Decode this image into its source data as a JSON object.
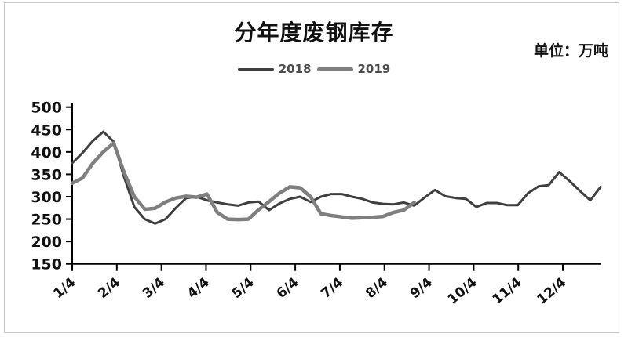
{
  "window": {
    "background": "#ffffff",
    "border_color": "#c8c8c8"
  },
  "header": {
    "title": "分年度废钢库存",
    "unit_label": "单位：万吨"
  },
  "legend": {
    "position": "top-center",
    "items": [
      {
        "label": "2018",
        "color": "#3f3f3f",
        "swatch_thickness": 3
      },
      {
        "label": "2019",
        "color": "#7f7f7f",
        "swatch_thickness": 5
      }
    ]
  },
  "chart_data": {
    "type": "line",
    "title": "分年度废钢库存",
    "unit": "万吨",
    "grid": false,
    "legend_position": "top-center",
    "ylim": [
      150,
      500
    ],
    "y_ticks": [
      150,
      200,
      250,
      300,
      350,
      400,
      450,
      500
    ],
    "x_tick_labels": [
      "1/4",
      "2/4",
      "3/4",
      "4/4",
      "5/4",
      "6/4",
      "7/4",
      "8/4",
      "9/4",
      "10/4",
      "11/4",
      "12/4"
    ],
    "x_note": "weekly data points starting at 1/4; month ticks evenly spaced",
    "series": [
      {
        "name": "2018",
        "color": "#3f3f3f",
        "line_width": 3,
        "values": [
          375,
          398,
          425,
          445,
          423,
          344,
          277,
          250,
          240,
          250,
          275,
          297,
          300,
          292,
          287,
          283,
          280,
          287,
          289,
          270,
          285,
          295,
          300,
          288,
          300,
          306,
          306,
          300,
          295,
          287,
          284,
          283,
          287,
          280,
          298,
          315,
          301,
          297,
          295,
          277,
          286,
          286,
          281,
          281,
          308,
          323,
          326,
          355,
          335,
          313,
          292,
          322
        ]
      },
      {
        "name": "2019",
        "color": "#7f7f7f",
        "line_width": 4.5,
        "values": [
          330,
          342,
          375,
          400,
          420,
          355,
          300,
          272,
          274,
          288,
          297,
          301,
          299,
          306,
          265,
          250,
          249,
          250,
          271,
          289,
          308,
          322,
          320,
          300,
          262,
          258,
          255,
          252,
          253,
          254,
          256,
          265,
          270,
          287
        ]
      }
    ]
  }
}
